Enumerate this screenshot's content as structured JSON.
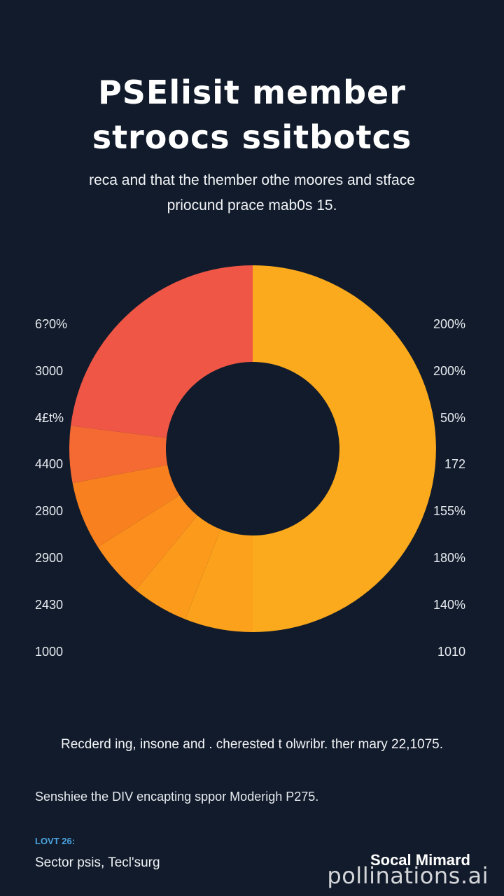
{
  "header": {
    "title_line1": "PSElisit member",
    "title_line2": "stroocs ssitbotcs",
    "subtitle_line1": "reca and that the thember othe moores and stface",
    "subtitle_line2": "priocund prace mab0s 15."
  },
  "chart_data": {
    "type": "pie",
    "title": "PSElisit member stroocs ssitbotcs",
    "donut": true,
    "left_axis_labels": [
      "6?0%",
      "3000",
      "4£t%",
      "4400",
      "2800",
      "2900",
      "2430",
      "1000"
    ],
    "right_axis_labels": [
      "200%",
      "200%",
      "50%",
      "172",
      "155%",
      "180%",
      "140%",
      "1010"
    ],
    "slices": [
      {
        "value": 50.0,
        "color": "#fbaa1d"
      },
      {
        "value": 6.0,
        "color": "#fca11b"
      },
      {
        "value": 5.0,
        "color": "#fc9a1c"
      },
      {
        "value": 5.0,
        "color": "#fb8e1d"
      },
      {
        "value": 6.0,
        "color": "#f8801e"
      },
      {
        "value": 5.0,
        "color": "#f56a33"
      },
      {
        "value": 23.0,
        "color": "#ef5646"
      }
    ]
  },
  "footer": {
    "note1": "Recderd ing, insone and . cherested t olwribr. ther mary 22,1075.",
    "note2": "Senshiee the DIV encapting sppor Moderigh P275.",
    "source_label": "LOVT 26:",
    "source_text": "Sector psis, Tecl'surg",
    "brand": "Socal Mimard",
    "watermark": "pollinations.ai"
  }
}
